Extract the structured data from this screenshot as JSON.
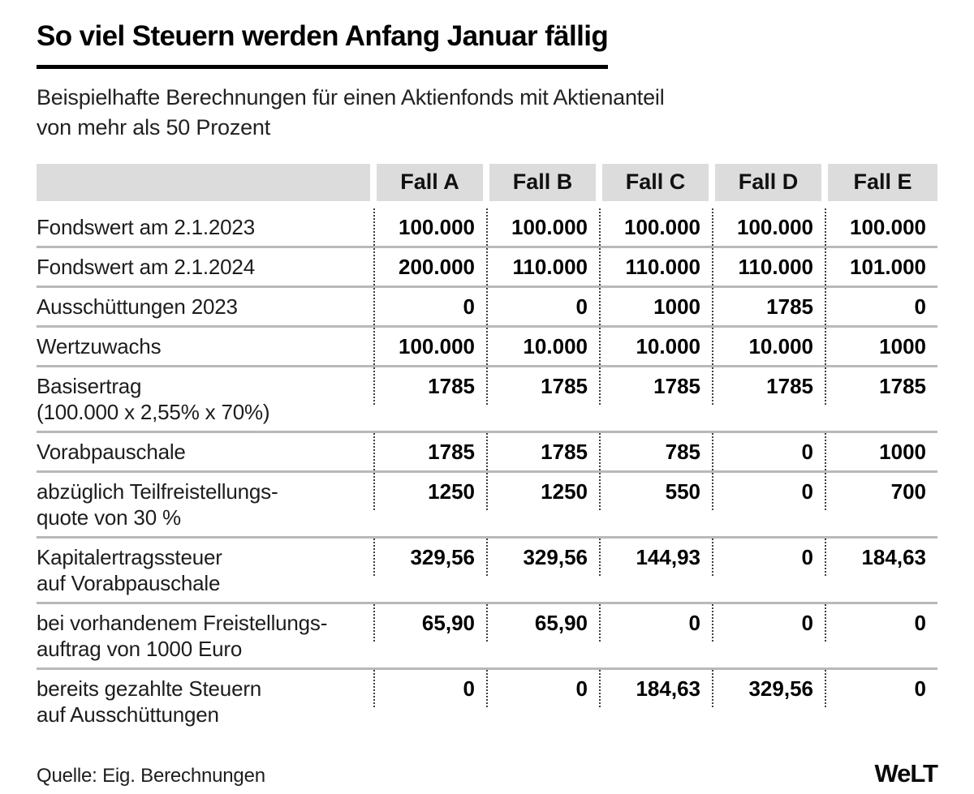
{
  "header": {
    "title": "So viel Steuern werden Anfang Januar fällig",
    "subtitle": "Beispielhafte Berechnungen für einen Aktienfonds mit Aktienanteil\nvon mehr als 50 Prozent"
  },
  "chart_data": {
    "type": "table",
    "columns": [
      "",
      "Fall A",
      "Fall B",
      "Fall C",
      "Fall D",
      "Fall E"
    ],
    "rows": [
      {
        "label": "Fondswert am 2.1.2023",
        "values": [
          "100.000",
          "100.000",
          "100.000",
          "100.000",
          "100.000"
        ]
      },
      {
        "label": "Fondswert am 2.1.2024",
        "values": [
          "200.000",
          "110.000",
          "110.000",
          "110.000",
          "101.000"
        ]
      },
      {
        "label": "Ausschüttungen 2023",
        "values": [
          "0",
          "0",
          "1000",
          "1785",
          "0"
        ]
      },
      {
        "label": "Wertzuwachs",
        "values": [
          "100.000",
          "10.000",
          "10.000",
          "10.000",
          "1000"
        ]
      },
      {
        "label": "Basisertrag\n(100.000 x 2,55% x 70%)",
        "values": [
          "1785",
          "1785",
          "1785",
          "1785",
          "1785"
        ]
      },
      {
        "label": "Vorabpauschale",
        "values": [
          "1785",
          "1785",
          "785",
          "0",
          "1000"
        ]
      },
      {
        "label": "abzüglich Teilfreistellungs-\nquote von 30 %",
        "values": [
          "1250",
          "1250",
          "550",
          "0",
          "700"
        ]
      },
      {
        "label": "Kapitalertragssteuer\nauf Vorabpauschale",
        "values": [
          "329,56",
          "329,56",
          "144,93",
          "0",
          "184,63"
        ]
      },
      {
        "label": "bei vorhandenem Freistellungs-\nauftrag von 1000 Euro",
        "values": [
          "65,90",
          "65,90",
          "0",
          "0",
          "0"
        ]
      },
      {
        "label": "bereits gezahlte Steuern\nauf Ausschüttungen",
        "values": [
          "0",
          "0",
          "184,63",
          "329,56",
          "0"
        ]
      }
    ],
    "title": "So viel Steuern werden Anfang Januar fällig",
    "legend_position": "none",
    "grid": "horizontal-separators"
  },
  "footer": {
    "source": "Quelle: Eig. Berechnungen",
    "brand": "WeLT"
  },
  "colors": {
    "header_cell_background": "#dcdcdc",
    "row_separator": "#b9b9b9",
    "dotted_column_divider": "#3f3f3f",
    "text": "#000000",
    "title_rule": "#000000"
  }
}
